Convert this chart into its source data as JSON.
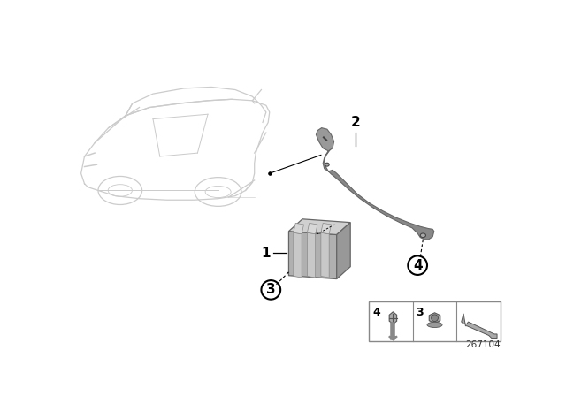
{
  "bg_color": "#ffffff",
  "part_number": "267104",
  "car_color": "#cccccc",
  "bracket_color": "#aaaaaa",
  "box_color": "#aaaaaa",
  "line_color": "#000000"
}
